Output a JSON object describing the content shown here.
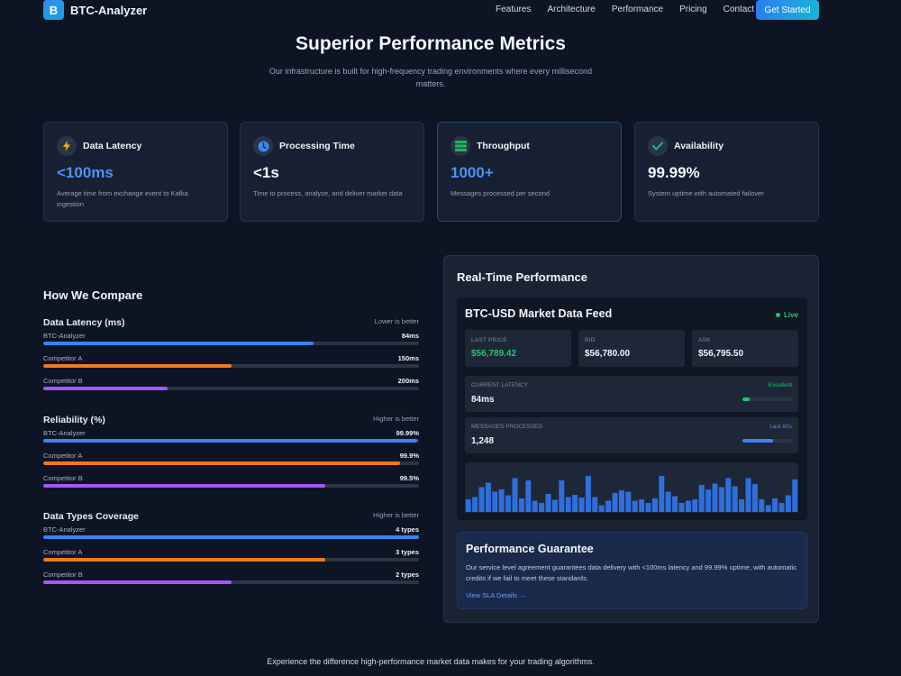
{
  "nav": {
    "logo_letter": "B",
    "brand": "BTC-Analyzer",
    "links": [
      "Features",
      "Architecture",
      "Performance",
      "Pricing",
      "Contact"
    ],
    "cta": "Get Started"
  },
  "hero": {
    "title": "Superior Performance Metrics",
    "subtitle": "Our infrastructure is built for high-frequency trading environments where every millisecond matters."
  },
  "metrics": [
    {
      "title": "Data Latency",
      "value": "<100ms",
      "desc": "Average time from exchange event to Kafka ingestion",
      "icon": "lightning-icon",
      "value_color": "#4b92f5"
    },
    {
      "title": "Processing Time",
      "value": "<1s",
      "desc": "Time to process, analyze, and deliver market data",
      "icon": "clock-icon",
      "value_color": "#f4f6fa"
    },
    {
      "title": "Throughput",
      "value": "1000+",
      "desc": "Messages processed per second",
      "icon": "server-icon",
      "value_color": "#4b92f5"
    },
    {
      "title": "Availability",
      "value": "99.99%",
      "desc": "System uptime with automated failover",
      "icon": "check-icon",
      "value_color": "#f4f6fa"
    }
  ],
  "compare": {
    "title": "How We Compare",
    "colors": {
      "btc": "#3b82f6",
      "a": "#f07a1f",
      "b": "#a855f7",
      "track": "#2b3547"
    },
    "sections": [
      {
        "name": "Data Latency (ms)",
        "note": "Lower is better",
        "rows": [
          {
            "label": "BTC-Analyzer",
            "value": "84ms",
            "fill": 0.72
          },
          {
            "label": "Competitor A",
            "value": "150ms",
            "fill": 0.5
          },
          {
            "label": "Competitor B",
            "value": "200ms",
            "fill": 0.33
          }
        ]
      },
      {
        "name": "Reliability (%)",
        "note": "Higher is better",
        "rows": [
          {
            "label": "BTC-Analyzer",
            "value": "99.99%",
            "fill": 0.995
          },
          {
            "label": "Competitor A",
            "value": "99.9%",
            "fill": 0.95
          },
          {
            "label": "Competitor B",
            "value": "99.5%",
            "fill": 0.75
          }
        ]
      },
      {
        "name": "Data Types Coverage",
        "note": "Higher is better",
        "rows": [
          {
            "label": "BTC-Analyzer",
            "value": "4 types",
            "fill": 1.0
          },
          {
            "label": "Competitor A",
            "value": "3 types",
            "fill": 0.75
          },
          {
            "label": "Competitor B",
            "value": "2 types",
            "fill": 0.5
          }
        ]
      }
    ]
  },
  "realtime": {
    "title": "Real-Time Performance",
    "feed": {
      "title": "BTC-USD Market Data Feed",
      "status": "Live",
      "prices": [
        {
          "label": "LAST PRICE",
          "value": "$56,789.42",
          "color": "#23c46a"
        },
        {
          "label": "BID",
          "value": "$56,780.00",
          "color": "#f1f4f9"
        },
        {
          "label": "ASK",
          "value": "$56,795.50",
          "color": "#f1f4f9"
        }
      ],
      "latency": {
        "label": "CURRENT LATENCY",
        "value": "84ms",
        "tag": "Excellent",
        "tag_color": "#23c46a",
        "fill": 0.15
      },
      "messages": {
        "label": "MESSAGES PROCESSED",
        "value": "1,248",
        "tag": "Last 60s",
        "tag_color": "#4b92f5",
        "fill": 0.62
      }
    },
    "guarantee": {
      "title": "Performance Guarantee",
      "desc": "Our service level agreement guarantees data delivery with <100ms latency and 99.99% uptime, with automatic credits if we fail to meet these standards.",
      "link": "View SLA Details →"
    }
  },
  "chart_data": {
    "type": "bar",
    "color": "#2f6fdc",
    "values": [
      0.28,
      0.33,
      0.55,
      0.65,
      0.45,
      0.5,
      0.37,
      0.75,
      0.3,
      0.7,
      0.25,
      0.2,
      0.4,
      0.27,
      0.7,
      0.33,
      0.38,
      0.32,
      0.8,
      0.33,
      0.15,
      0.25,
      0.42,
      0.48,
      0.45,
      0.25,
      0.28,
      0.2,
      0.3,
      0.8,
      0.45,
      0.35,
      0.2,
      0.25,
      0.28,
      0.6,
      0.5,
      0.63,
      0.55,
      0.75,
      0.57,
      0.28,
      0.75,
      0.62,
      0.28,
      0.15,
      0.3,
      0.2,
      0.37,
      0.72
    ]
  },
  "footer": {
    "note": "Experience the difference high-performance market data makes for your trading algorithms."
  }
}
